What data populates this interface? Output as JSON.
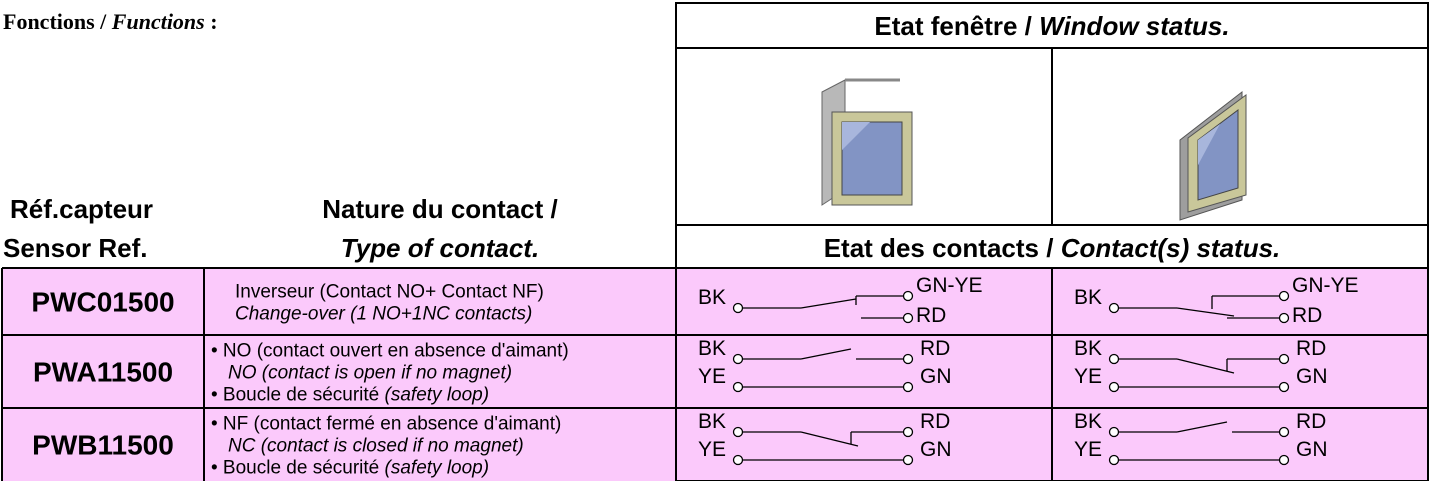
{
  "title": [
    {
      "text": "Fonctions / ",
      "italic": false
    },
    {
      "text": "Functions",
      "italic": true
    },
    {
      "text": " :",
      "italic": false
    }
  ],
  "window_status": [
    {
      "text": "Etat fenêtre / ",
      "italic": false
    },
    {
      "text": "Window status.",
      "italic": true
    }
  ],
  "contact_status": [
    {
      "text": "Etat des contacts / ",
      "italic": false
    },
    {
      "text": "Contact(s) status.",
      "italic": true
    }
  ],
  "columns": {
    "ref": [
      "Réf.capteur",
      "Sensor Ref."
    ],
    "type": [
      "Nature du contact /",
      "Type of contact."
    ]
  },
  "rows": [
    {
      "ref": "PWC01500",
      "lines": [
        [
          {
            "text": "Inverseur (Contact NO+ Contact NF)",
            "italic": false
          }
        ],
        [
          {
            "text": "Change-over (1 NO+1NC contacts)",
            "italic": true
          }
        ]
      ],
      "window_open": [
        "BK",
        "GN-YE",
        "RD"
      ],
      "window_closed": [
        "BK",
        "GN-YE",
        "RD"
      ]
    },
    {
      "ref": "PWA11500",
      "lines": [
        [
          {
            "text": "• NO (contact ouvert en absence d'aimant)",
            "italic": false
          }
        ],
        [
          {
            "text": "NO (contact is open if no magnet)",
            "italic": true
          }
        ],
        [
          {
            "text": "• Boucle de sécurité ",
            "italic": false
          },
          {
            "text": "(safety loop)",
            "italic": true
          }
        ]
      ],
      "window_open": [
        "BK",
        "RD",
        "YE",
        "GN"
      ],
      "window_closed": [
        "BK",
        "RD",
        "YE",
        "GN"
      ]
    },
    {
      "ref": "PWB11500",
      "lines": [
        [
          {
            "text": "• NF (contact fermé en absence d'aimant)",
            "italic": false
          }
        ],
        [
          {
            "text": "NC (contact is closed if no magnet)",
            "italic": true
          }
        ],
        [
          {
            "text": "• Boucle de sécurité ",
            "italic": false
          },
          {
            "text": "(safety loop)",
            "italic": true
          }
        ]
      ],
      "window_open": [
        "BK",
        "RD",
        "YE",
        "GN"
      ],
      "window_closed": [
        "BK",
        "RD",
        "YE",
        "GN"
      ]
    }
  ]
}
